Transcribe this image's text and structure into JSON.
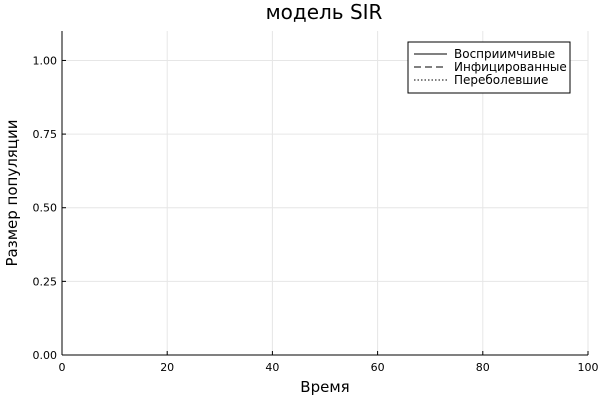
{
  "chart_data": {
    "type": "line",
    "title": "модель SIR",
    "xlabel": "Время",
    "ylabel": "Размер  популяции",
    "xlim": [
      0,
      100
    ],
    "ylim": [
      0,
      1.1
    ],
    "x_ticks": [
      0,
      20,
      40,
      60,
      80,
      100
    ],
    "x_tick_labels": [
      "0",
      "20",
      "40",
      "60",
      "80",
      "100"
    ],
    "y_ticks": [
      0,
      0.25,
      0.5,
      0.75,
      1.0
    ],
    "y_tick_labels": [
      "0.00",
      "0.25",
      "0.50",
      "0.75",
      "1.00"
    ],
    "grid": true,
    "legend_position": "top-right",
    "series": [
      {
        "name": "Восприимчивые",
        "line_style": "solid",
        "color": "#000000",
        "x": [],
        "y": []
      },
      {
        "name": "Инфицированные",
        "line_style": "dashed",
        "color": "#000000",
        "x": [],
        "y": []
      },
      {
        "name": "Переболевшие",
        "line_style": "dotted",
        "color": "#000000",
        "x": [],
        "y": []
      }
    ]
  }
}
